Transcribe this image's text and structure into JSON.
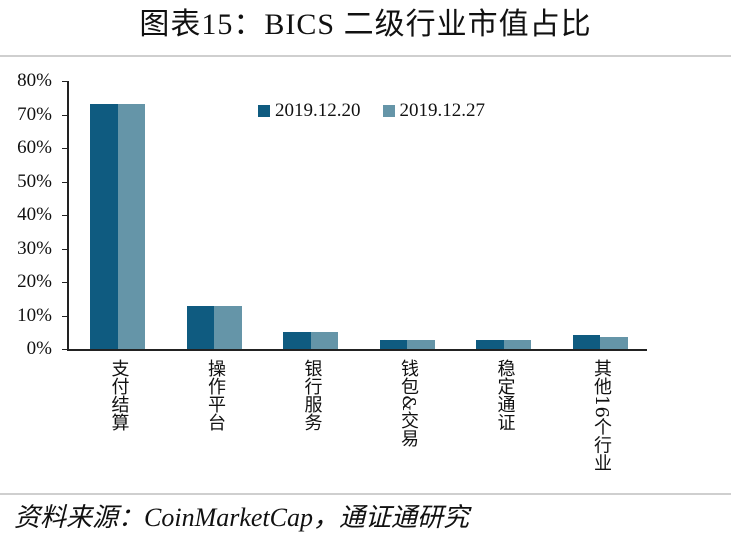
{
  "title": "图表15：BICS 二级行业市值占比",
  "source": "资料来源：CoinMarketCap，通证通研究",
  "colors": {
    "series1": "#0F5B80",
    "series2": "#6595A8"
  },
  "legend": [
    {
      "label": "2019.12.20",
      "color": "#0F5B80"
    },
    {
      "label": "2019.12.27",
      "color": "#6595A8"
    }
  ],
  "yticks": [
    "80%",
    "70%",
    "60%",
    "50%",
    "40%",
    "30%",
    "20%",
    "10%",
    "0%"
  ],
  "chart_data": {
    "type": "bar",
    "title": "图表15：BICS 二级行业市值占比",
    "xlabel": "",
    "ylabel": "",
    "ylim": [
      0,
      80
    ],
    "yticks": [
      0,
      10,
      20,
      30,
      40,
      50,
      60,
      70,
      80
    ],
    "ytick_format": "%",
    "grid": false,
    "legend_position": "top-center",
    "categories": [
      "支付结算",
      "操作平台",
      "银行服务",
      "钱包&交易",
      "稳定通证",
      "其他16个行业"
    ],
    "series": [
      {
        "name": "2019.12.20",
        "color": "#0F5B80",
        "values": [
          73.1,
          12.8,
          5.0,
          2.7,
          2.7,
          4.1
        ]
      },
      {
        "name": "2019.12.27",
        "color": "#6595A8",
        "values": [
          73.1,
          12.8,
          5.0,
          2.7,
          2.7,
          3.7
        ]
      }
    ]
  }
}
